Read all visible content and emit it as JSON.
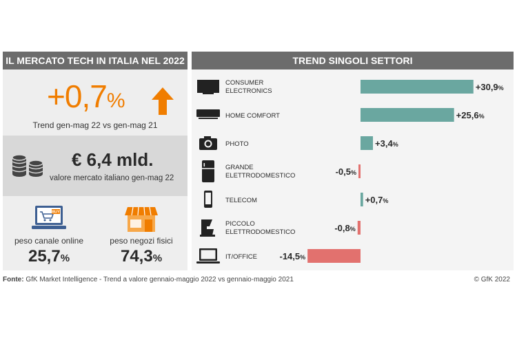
{
  "headers": {
    "left": "IL MERCATO TECH IN ITALIA NEL 2022",
    "right": "TREND SINGOLI SETTORI"
  },
  "growth": {
    "value": "+0,7",
    "unit": "%",
    "subtitle": "Trend gen-mag 22 vs gen-mag 21"
  },
  "market": {
    "value": "€ 6,4 mld.",
    "subtitle": "valore mercato italiano gen-mag 22"
  },
  "channels": [
    {
      "label": "peso canale online",
      "value": "25,7",
      "unit": "%",
      "icon": "laptop-cart-icon"
    },
    {
      "label": "peso negozi fisici",
      "value": "74,3",
      "unit": "%",
      "icon": "store-icon"
    }
  ],
  "colors": {
    "positive": "#6aa7a0",
    "negative": "#e2716e",
    "accent": "#f07d00"
  },
  "chart_data": {
    "type": "bar",
    "orientation": "horizontal",
    "categories": [
      [
        "CONSUMER",
        "ELECTRONICS"
      ],
      [
        "HOME COMFORT"
      ],
      [
        "PHOTO"
      ],
      [
        "GRANDE",
        "ELETTRODOMESTICO"
      ],
      [
        "TELECOM"
      ],
      [
        "PICCOLO",
        "ELETTRODOMESTICO"
      ],
      [
        "IT/OFFICE"
      ]
    ],
    "icons": [
      "tv-icon",
      "air-conditioner-icon",
      "camera-icon",
      "fridge-icon",
      "smartphone-icon",
      "kitchen-mixer-icon",
      "laptop-icon"
    ],
    "values": [
      30.9,
      25.6,
      3.4,
      -0.5,
      0.7,
      -0.8,
      -14.5
    ],
    "labels": [
      "+30,9",
      "+25,6",
      "+3,4",
      "-0,5",
      "+0,7",
      "-0,8",
      "-14,5"
    ],
    "unit": "%"
  },
  "footer": {
    "source_label": "Fonte:",
    "source_text": " GfK Market Intelligence  - Trend a valore gennaio-maggio 2022 vs gennaio-maggio 2021",
    "copyright": "© GfK 2022"
  }
}
